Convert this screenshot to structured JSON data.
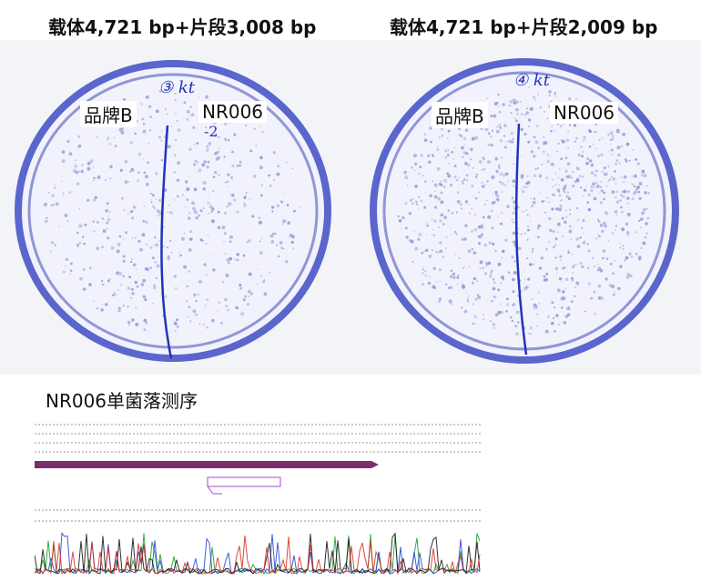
{
  "figure": {
    "left_title": "载体4,721 bp+片段3,008 bp",
    "right_title": "载体4,721 bp+片段2,009 bp",
    "left_plate": {
      "handwritten_mark": "③ kt",
      "label_left": "品牌B",
      "label_right": "NR006"
    },
    "right_plate": {
      "handwritten_mark": "④ kt",
      "label_left": "品牌B",
      "label_right": "NR006"
    },
    "sequencing_title": "NR006单菌落测序"
  },
  "colors": {
    "plate_rim": "#5a66cc",
    "plate_fill": "#f1f2fb",
    "colony": "#8f96d6",
    "marker_line": "#2233bb",
    "feature_bar": "#7a2e6e",
    "primer_box": "#a64ad1"
  }
}
